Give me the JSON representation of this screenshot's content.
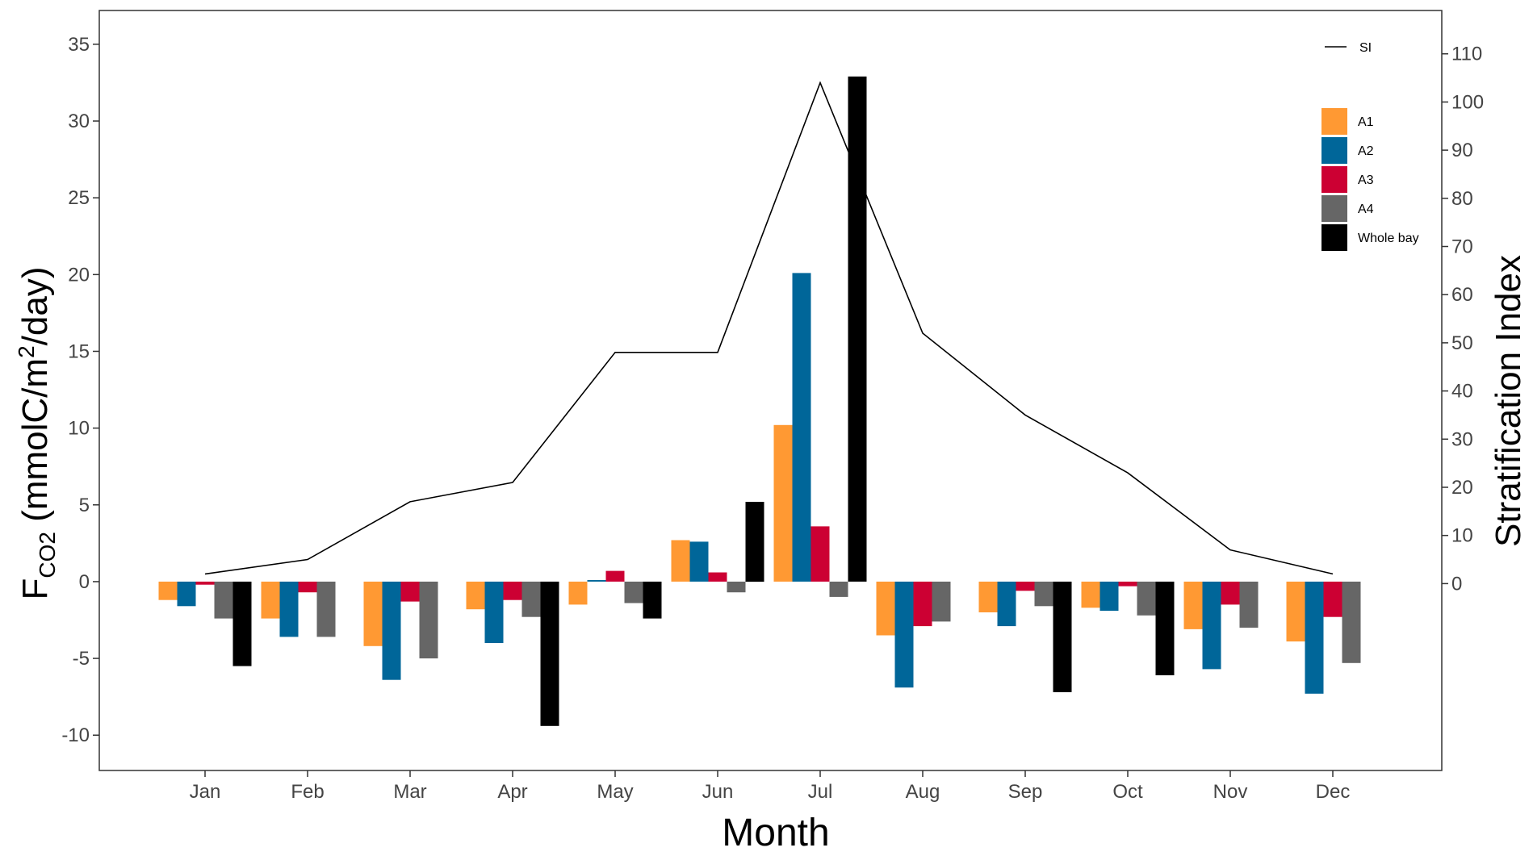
{
  "chart_data": {
    "type": "bar",
    "categories": [
      "Jan",
      "Feb",
      "Mar",
      "Apr",
      "May",
      "Jun",
      "Jul",
      "Aug",
      "Sep",
      "Oct",
      "Nov",
      "Dec"
    ],
    "series": [
      {
        "name": "A1",
        "color": "#FF9933",
        "values": [
          -1.2,
          -2.4,
          -4.2,
          -1.8,
          -1.5,
          2.7,
          10.2,
          -3.5,
          -2.0,
          -1.7,
          -3.1,
          -3.9
        ]
      },
      {
        "name": "A2",
        "color": "#006699",
        "values": [
          -1.6,
          -3.6,
          -6.4,
          -4.0,
          0.1,
          2.6,
          20.1,
          -6.9,
          -2.9,
          -1.9,
          -5.7,
          -7.3
        ]
      },
      {
        "name": "A3",
        "color": "#CC0033",
        "values": [
          -0.2,
          -0.7,
          -1.3,
          -1.2,
          0.7,
          0.6,
          3.6,
          -2.9,
          -0.6,
          -0.3,
          -1.5,
          -2.3
        ]
      },
      {
        "name": "A4",
        "color": "#666666",
        "values": [
          -2.4,
          -3.6,
          -5.0,
          -2.3,
          -1.4,
          -0.7,
          -1.0,
          -2.6,
          -1.6,
          -2.2,
          -3.0,
          -5.3
        ]
      },
      {
        "name": "Whole bay",
        "color": "#000000",
        "values": [
          -5.5,
          null,
          null,
          -9.4,
          -2.4,
          5.2,
          32.9,
          null,
          -7.2,
          -6.1,
          null,
          null
        ]
      }
    ],
    "line_series": {
      "name": "SI",
      "color": "#000000",
      "axis": "right",
      "values": [
        2,
        5,
        17,
        21,
        48,
        48,
        104,
        52,
        35,
        23,
        7,
        2
      ]
    },
    "xlabel": "Month",
    "ylabel_left": {
      "main": "F",
      "sub": "CO2",
      "rest": " (mmolC/m",
      "sup": "2",
      "end": "/day)"
    },
    "ylabel_right": "Stratification Index",
    "ylim_left": [
      -12.3,
      37.2
    ],
    "yticks_left": [
      -10,
      -5,
      0,
      5,
      10,
      15,
      20,
      25,
      30,
      35
    ],
    "ylim_right": [
      -38.8,
      119
    ],
    "yticks_right": [
      0,
      10,
      20,
      30,
      40,
      50,
      60,
      70,
      80,
      90,
      100,
      110
    ],
    "legend_placement": "top-right",
    "grid": false
  }
}
